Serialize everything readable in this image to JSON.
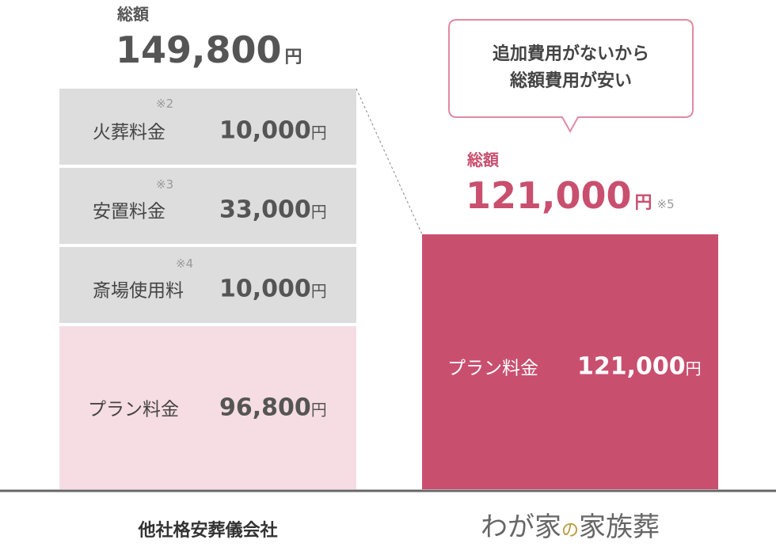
{
  "left": {
    "total_label": "総額",
    "total": "149,800",
    "unit": "円",
    "items": [
      {
        "label": "火葬料金",
        "note": "※2",
        "amount": "10,000",
        "unit": "円"
      },
      {
        "label": "安置料金",
        "note": "※3",
        "amount": "33,000",
        "unit": "円"
      },
      {
        "label": "斎場使用料",
        "note": "※4",
        "amount": "10,000",
        "unit": "円"
      },
      {
        "label": "プラン料金",
        "amount": "96,800",
        "unit": "円"
      }
    ],
    "name": "他社格安葬儀会社"
  },
  "right": {
    "callout": [
      "追加費用がないから",
      "総額費用が安い"
    ],
    "total_label": "総額",
    "total": "121,000",
    "unit": "円",
    "note": "※5",
    "items": [
      {
        "label": "プラン料金",
        "amount": "121,000",
        "unit": "円"
      }
    ],
    "brand": [
      "わが家",
      "の",
      "家族葬"
    ]
  }
}
